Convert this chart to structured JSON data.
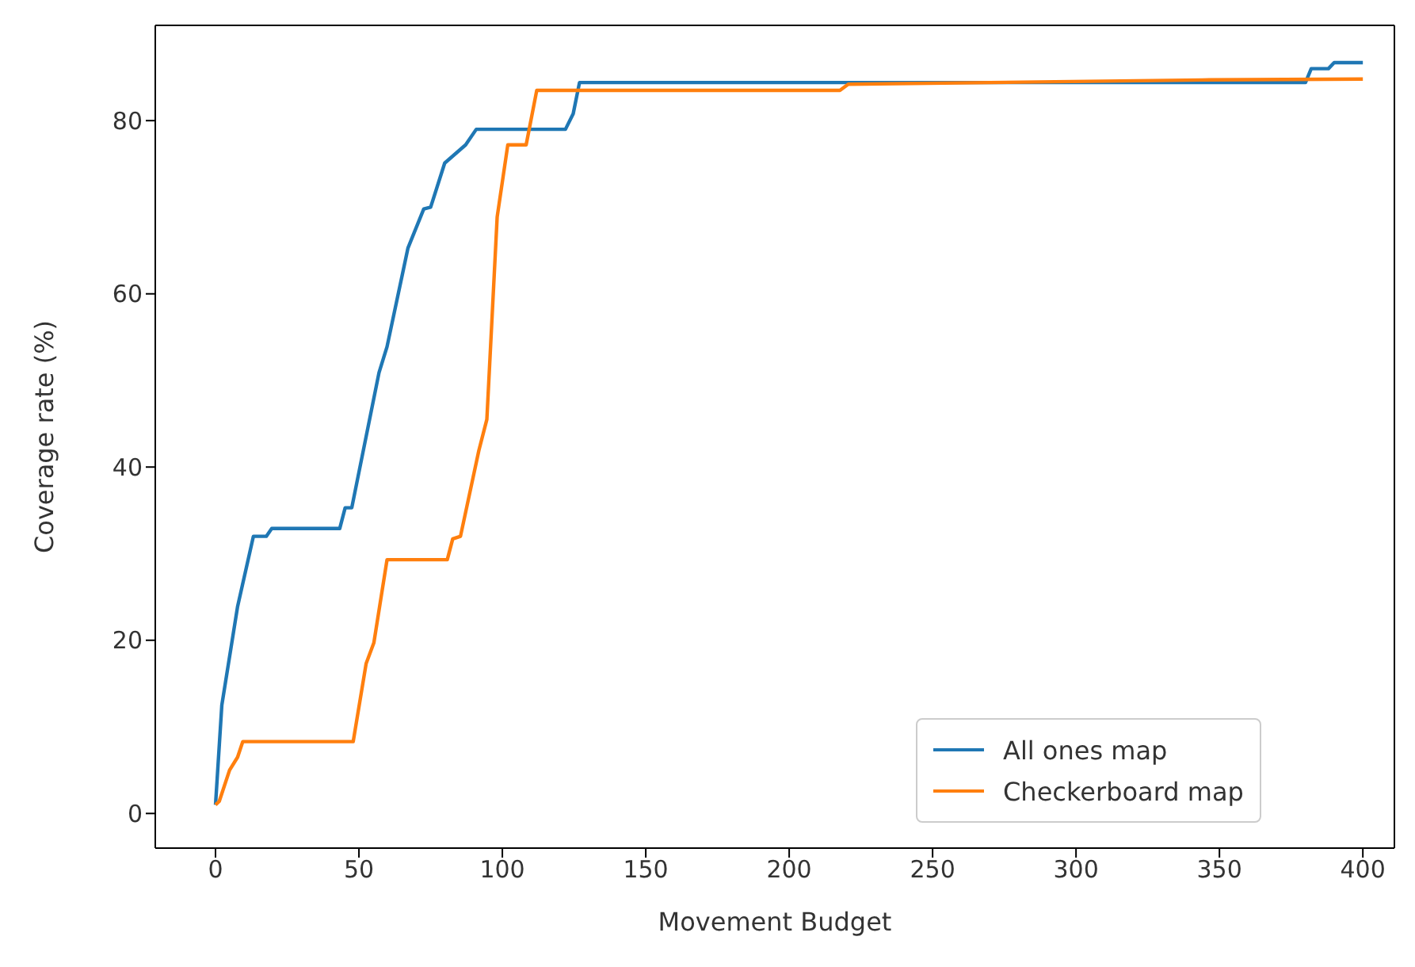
{
  "chart_data": {
    "type": "line",
    "xlabel": "Movement Budget",
    "ylabel": "Coverage rate (%)",
    "xlim": [
      -21,
      411
    ],
    "ylim": [
      -4,
      91
    ],
    "xticks": [
      0,
      50,
      100,
      150,
      200,
      250,
      300,
      350,
      400
    ],
    "yticks": [
      0,
      20,
      40,
      60,
      80
    ],
    "grid": false,
    "legend": "bottom right",
    "marker": "none",
    "line_style": "solid",
    "series": [
      {
        "name": "All ones map",
        "color": "#1f77b4",
        "x": [
          0,
          2.2,
          7.7,
          13.2,
          17.7,
          19.6,
          43.3,
          45.2,
          47.5,
          57,
          59.8,
          67.1,
          72.6,
          75,
          79.9,
          87.2,
          90.9,
          122,
          124.7,
          126.9,
          220,
          380,
          382,
          388,
          390,
          400
        ],
        "values": [
          1,
          12.5,
          23.9,
          32,
          32,
          32.9,
          32.9,
          35.3,
          35.3,
          50.9,
          53.9,
          65.3,
          69.8,
          70,
          75.1,
          77.2,
          79,
          79,
          80.8,
          84.4,
          84.4,
          84.4,
          86,
          86,
          86.7,
          86.7
        ]
      },
      {
        "name": "Checkerboard map",
        "color": "#ff7f0e",
        "x": [
          0,
          1.3,
          4.9,
          7.7,
          9.5,
          48,
          52.5,
          55.2,
          59.8,
          80.8,
          82.7,
          85.4,
          91.8,
          94.6,
          98.2,
          101.9,
          108.3,
          112,
          217.7,
          220.6,
          344,
          400
        ],
        "values": [
          1,
          1.4,
          5,
          6.5,
          8.3,
          8.3,
          17.3,
          19.7,
          29.3,
          29.3,
          31.7,
          32,
          41.9,
          45.5,
          68.9,
          77.2,
          77.2,
          83.5,
          83.5,
          84.2,
          84.7,
          84.8
        ]
      }
    ]
  }
}
